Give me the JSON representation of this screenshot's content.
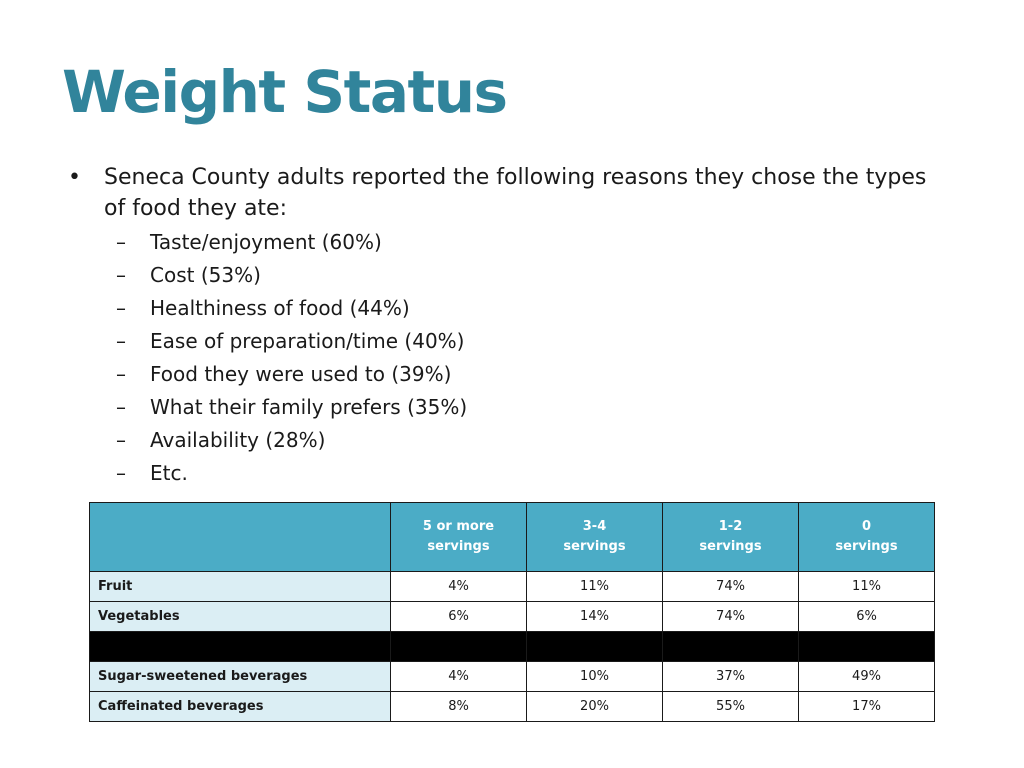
{
  "title": "Weight Status",
  "bullet": "Seneca County adults reported the following reasons they chose the types of food they ate:",
  "bullet_glyph": "•",
  "dash_glyph": "–",
  "reasons": [
    "Taste/enjoyment (60%)",
    "Cost (53%)",
    "Healthiness of food (44%)",
    "Ease of preparation/time (40%)",
    "Food they were used to (39%)",
    "What their family prefers (35%)",
    "Availability (28%)",
    "Etc."
  ],
  "table": {
    "corner": "",
    "headers": [
      [
        "5 or more",
        "servings"
      ],
      [
        "3-4",
        "servings"
      ],
      [
        "1-2",
        "servings"
      ],
      [
        "0",
        "servings"
      ]
    ],
    "rows": [
      {
        "label": "Fruit",
        "values": [
          "4%",
          "11%",
          "74%",
          "11%"
        ]
      },
      {
        "label": "Vegetables",
        "values": [
          "6%",
          "14%",
          "74%",
          "6%"
        ]
      },
      {
        "label": "",
        "values": [
          "",
          "",
          "",
          ""
        ],
        "black": true
      },
      {
        "label": "Sugar-sweetened beverages",
        "values": [
          "4%",
          "10%",
          "37%",
          "49%"
        ]
      },
      {
        "label": "Caffeinated beverages",
        "values": [
          "8%",
          "20%",
          "55%",
          "17%"
        ]
      }
    ],
    "header_color": "#4bacc6",
    "label_cell_color": "#dbeef4",
    "title_color": "#31849b"
  }
}
